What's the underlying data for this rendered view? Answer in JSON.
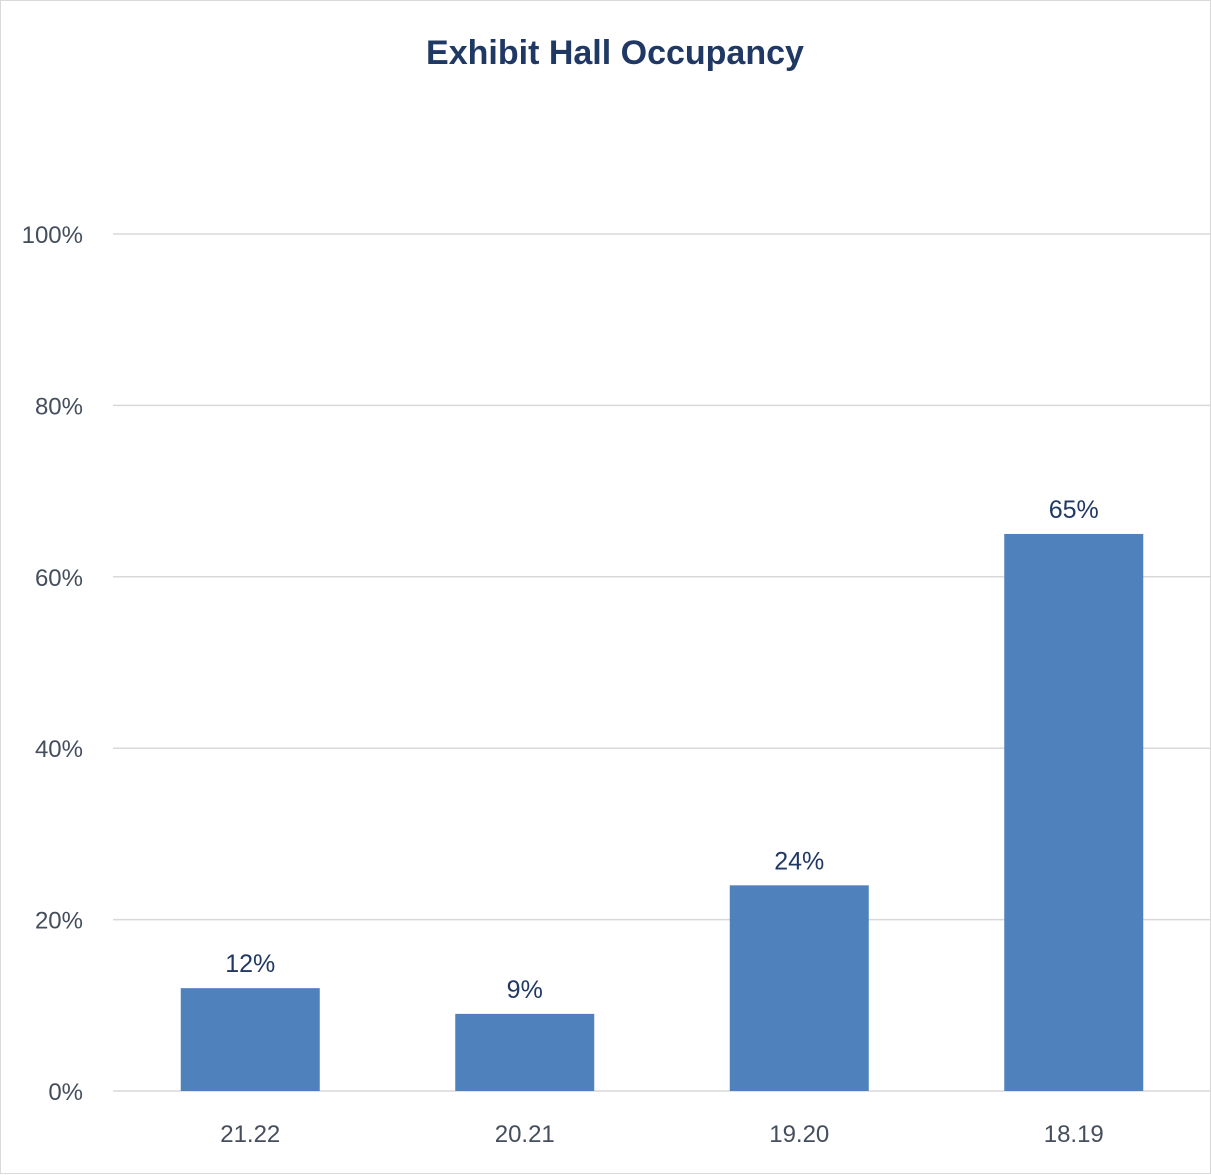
{
  "chart_data": {
    "type": "bar",
    "title": "Exhibit Hall Occupancy",
    "categories": [
      "21.22",
      "20.21",
      "19.20",
      "18.19"
    ],
    "values": [
      12,
      9,
      24,
      65
    ],
    "value_labels": [
      "12%",
      "9%",
      "24%",
      "65%"
    ],
    "ylim": [
      0,
      100
    ],
    "yticks": [
      0,
      20,
      40,
      60,
      80,
      100
    ],
    "ytick_labels": [
      "0%",
      "20%",
      "40%",
      "60%",
      "80%",
      "100%"
    ],
    "grid": true,
    "legend": false
  },
  "colors": {
    "bar": "#4f81bd",
    "title": "#1f3864",
    "data_label": "#1f3864",
    "gridline": "#d9d9d9"
  }
}
